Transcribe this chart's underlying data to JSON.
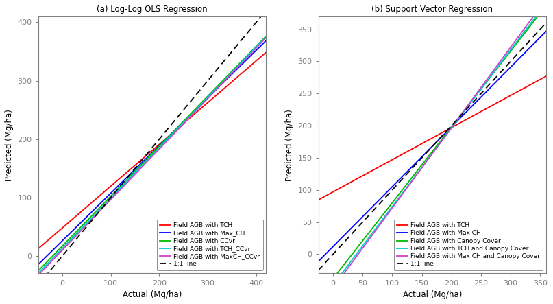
{
  "title_a": "(a) Log-Log OLS Regression",
  "title_b": "(b) Support Vector Regression",
  "xlabel": "Actual (Mg/ha)",
  "ylabel": "Predicted (Mg/ha)",
  "panel_a": {
    "xlim": [
      -50,
      420
    ],
    "ylim": [
      -30,
      410
    ],
    "xticks": [
      0,
      100,
      200,
      300,
      400
    ],
    "yticks": [
      0,
      100,
      200,
      300,
      400
    ],
    "lines": [
      {
        "label": "Field AGB with TCH",
        "color": "#FF0000",
        "slope": 0.715,
        "intercept": 48
      },
      {
        "label": "Field AGB with Max_CH",
        "color": "#0000FF",
        "slope": 0.815,
        "intercept": 26
      },
      {
        "label": "Field AGB with CCvr",
        "color": "#00BB00",
        "slope": 0.855,
        "intercept": 17
      },
      {
        "label": "Field AGB with TCH_CCvr",
        "color": "#00CCCC",
        "slope": 0.862,
        "intercept": 13
      },
      {
        "label": "Field AGB with MaxCH_CCvr",
        "color": "#CC44CC",
        "slope": 0.865,
        "intercept": 10
      }
    ],
    "one_to_one": {
      "label": "1:1 line",
      "color": "black",
      "slope": 1.0,
      "intercept": 0
    }
  },
  "panel_b": {
    "xlim": [
      -25,
      360
    ],
    "ylim": [
      -30,
      370
    ],
    "xticks": [
      0,
      50,
      100,
      150,
      200,
      250,
      300,
      350
    ],
    "yticks": [
      0,
      50,
      100,
      150,
      200,
      250,
      300,
      350
    ],
    "lines": [
      {
        "label": "Field AGB with TCH",
        "color": "#FF0000",
        "slope": 0.5,
        "intercept": 97
      },
      {
        "label": "Field AGB with Max CH",
        "color": "#0000FF",
        "slope": 0.93,
        "intercept": 12
      },
      {
        "label": "Field AGB with Canopy Cover",
        "color": "#00BB00",
        "slope": 1.18,
        "intercept": -38
      },
      {
        "label": "Field AGB with TCH and Canopy Cover",
        "color": "#00CCCC",
        "slope": 1.22,
        "intercept": -48
      },
      {
        "label": "Field AGB with Max CH and Canopy Cover",
        "color": "#CC44CC",
        "slope": 1.25,
        "intercept": -53
      }
    ],
    "one_to_one": {
      "label": "1:1 line",
      "color": "black",
      "slope": 1.0,
      "intercept": 0
    }
  },
  "figsize": [
    8.07,
    4.43
  ],
  "dpi": 100,
  "title_fontsize": 8.5,
  "label_fontsize": 8.5,
  "tick_fontsize": 8,
  "legend_fontsize": 6.5,
  "linewidth": 1.3,
  "spine_color": "#808080",
  "background_color": "#FFFFFF"
}
